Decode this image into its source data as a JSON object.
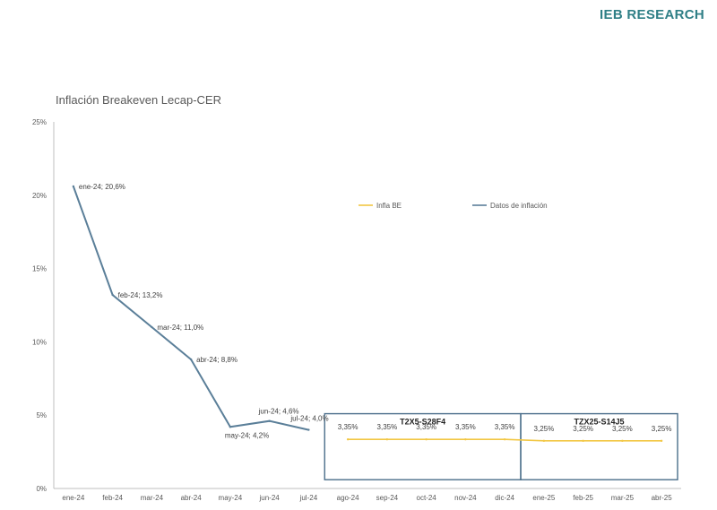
{
  "brand": "IEB RESEARCH",
  "chart_data": {
    "type": "line",
    "title": "Inflación Breakeven Lecap-CER",
    "xlabel": "",
    "ylabel": "",
    "categories": [
      "ene-24",
      "feb-24",
      "mar-24",
      "abr-24",
      "may-24",
      "jun-24",
      "jul-24",
      "ago-24",
      "sep-24",
      "oct-24",
      "nov-24",
      "dic-24",
      "ene-25",
      "feb-25",
      "mar-25",
      "abr-25"
    ],
    "ylim": [
      0,
      25
    ],
    "y_ticks": [
      0,
      5,
      10,
      15,
      20,
      25
    ],
    "y_tick_labels": [
      "0%",
      "5%",
      "10%",
      "15%",
      "20%",
      "25%"
    ],
    "grid": false,
    "legend_position": "top-right",
    "series": [
      {
        "name": "Infla BE",
        "color": "#f2c744",
        "values": [
          null,
          null,
          null,
          null,
          null,
          null,
          null,
          3.35,
          3.35,
          3.35,
          3.35,
          3.35,
          3.25,
          3.25,
          3.25,
          3.25
        ],
        "labels": [
          "",
          "",
          "",
          "",
          "",
          "",
          "",
          "3,35%",
          "3,35%",
          "3,35%",
          "3,35%",
          "3,35%",
          "3,25%",
          "3,25%",
          "3,25%",
          "3,25%"
        ]
      },
      {
        "name": "Datos de inflación",
        "color": "#5b7f99",
        "values": [
          20.6,
          13.2,
          11.0,
          8.8,
          4.2,
          4.6,
          4.0,
          null,
          null,
          null,
          null,
          null,
          null,
          null,
          null,
          null
        ],
        "labels": [
          "ene-24; 20,6%",
          "feb-24; 13,2%",
          "mar-24; 11,0%",
          "abr-24; 8,8%",
          "may-24; 4,2%",
          "jun-24; 4,6%",
          "jul-24; 4,0%",
          "",
          "",
          "",
          "",
          "",
          "",
          "",
          "",
          ""
        ]
      }
    ],
    "annotations": [
      {
        "label": "T2X5-S28F4",
        "from": "ago-24",
        "to": "dic-24",
        "box_color": "#4a6e8a"
      },
      {
        "label": "TZX25-S14J5",
        "from": "ene-25",
        "to": "abr-25",
        "box_color": "#4a6e8a"
      }
    ]
  }
}
